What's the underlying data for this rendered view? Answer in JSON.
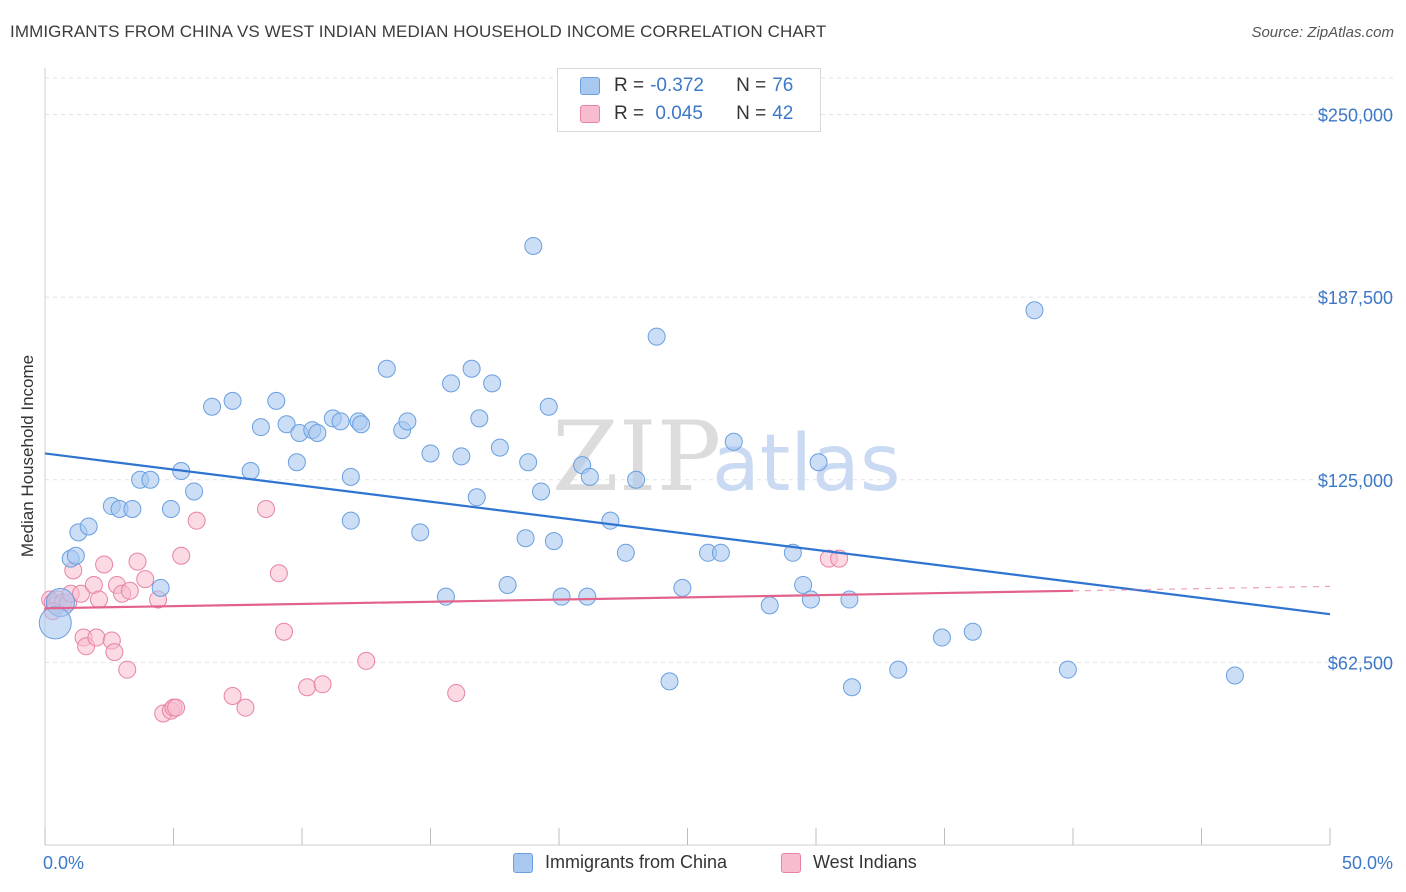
{
  "title": "IMMIGRANTS FROM CHINA VS WEST INDIAN MEDIAN HOUSEHOLD INCOME CORRELATION CHART",
  "source": "Source: ZipAtlas.com",
  "watermark": {
    "part1": "ZIP",
    "part2": "atlas"
  },
  "legend": {
    "rows": [
      {
        "r_label": "R = ",
        "r_value": "-0.372",
        "n_label": "N = ",
        "n_value": "76",
        "color": "#a9c8f0",
        "border": "#6a9fe0"
      },
      {
        "r_label": "R = ",
        "r_value": " 0.045",
        "n_label": "N = ",
        "n_value": "42",
        "color": "#f7bccd",
        "border": "#e883a3"
      }
    ]
  },
  "bottom_legend": {
    "china": "Immigrants from China",
    "west_indians": "West Indians"
  },
  "chart_data": {
    "type": "scatter",
    "title": "IMMIGRANTS FROM CHINA VS WEST INDIAN MEDIAN HOUSEHOLD INCOME CORRELATION CHART",
    "xlabel": "",
    "ylabel": "Median Household Income",
    "xlim": [
      0,
      50
    ],
    "ylim": [
      0,
      262500
    ],
    "x_tick_labels": [
      "0.0%",
      "50.0%"
    ],
    "y_ticks": [
      62500,
      125000,
      187500,
      250000
    ],
    "y_tick_labels": [
      "$62,500",
      "$125,000",
      "$187,500",
      "$250,000"
    ],
    "grid": true,
    "series": [
      {
        "name": "Immigrants from China",
        "color": "#6a9fe0",
        "fill": "#a9c8f0",
        "trend": {
          "x": [
            0,
            50
          ],
          "y": [
            134000,
            79000
          ],
          "color": "#2f74d0"
        },
        "points": [
          [
            0.6,
            83000
          ],
          [
            1.0,
            98000
          ],
          [
            1.2,
            99000
          ],
          [
            1.3,
            107000
          ],
          [
            1.7,
            109000
          ],
          [
            2.6,
            116000
          ],
          [
            2.9,
            115000
          ],
          [
            3.4,
            115000
          ],
          [
            3.7,
            125000
          ],
          [
            4.1,
            125000
          ],
          [
            4.5,
            88000
          ],
          [
            4.9,
            115000
          ],
          [
            5.3,
            128000
          ],
          [
            5.8,
            121000
          ],
          [
            6.5,
            150000
          ],
          [
            7.3,
            152000
          ],
          [
            8.0,
            128000
          ],
          [
            8.4,
            143000
          ],
          [
            9.0,
            152000
          ],
          [
            9.4,
            144000
          ],
          [
            9.8,
            131000
          ],
          [
            9.9,
            141000
          ],
          [
            10.4,
            142000
          ],
          [
            10.6,
            141000
          ],
          [
            11.2,
            146000
          ],
          [
            11.5,
            145000
          ],
          [
            12.2,
            145000
          ],
          [
            11.9,
            111000
          ],
          [
            11.9,
            126000
          ],
          [
            12.3,
            144000
          ],
          [
            13.3,
            163000
          ],
          [
            13.9,
            142000
          ],
          [
            14.1,
            145000
          ],
          [
            14.6,
            107000
          ],
          [
            15.0,
            134000
          ],
          [
            15.6,
            85000
          ],
          [
            15.8,
            158000
          ],
          [
            16.2,
            133000
          ],
          [
            16.6,
            163000
          ],
          [
            16.8,
            119000
          ],
          [
            16.9,
            146000
          ],
          [
            17.4,
            158000
          ],
          [
            17.7,
            136000
          ],
          [
            18.0,
            89000
          ],
          [
            18.7,
            105000
          ],
          [
            18.8,
            131000
          ],
          [
            19.0,
            205000
          ],
          [
            19.3,
            121000
          ],
          [
            19.6,
            150000
          ],
          [
            19.8,
            104000
          ],
          [
            20.1,
            85000
          ],
          [
            20.9,
            130000
          ],
          [
            21.1,
            85000
          ],
          [
            21.2,
            126000
          ],
          [
            22.0,
            111000
          ],
          [
            22.6,
            100000
          ],
          [
            23.0,
            125000
          ],
          [
            23.8,
            174000
          ],
          [
            24.3,
            56000
          ],
          [
            24.8,
            88000
          ],
          [
            25.8,
            100000
          ],
          [
            26.3,
            100000
          ],
          [
            26.8,
            138000
          ],
          [
            28.2,
            82000
          ],
          [
            29.1,
            100000
          ],
          [
            29.5,
            89000
          ],
          [
            29.8,
            84000
          ],
          [
            30.1,
            131000
          ],
          [
            31.3,
            84000
          ],
          [
            31.4,
            54000
          ],
          [
            33.2,
            60000
          ],
          [
            34.9,
            71000
          ],
          [
            36.1,
            73000
          ],
          [
            38.5,
            183000
          ],
          [
            39.8,
            60000
          ],
          [
            46.3,
            58000
          ]
        ]
      },
      {
        "name": "West Indians",
        "color": "#e883a3",
        "fill": "#f7bccd",
        "trend": {
          "x": [
            0,
            40
          ],
          "y": [
            81000,
            87000
          ],
          "color": "#e2628c",
          "dashed_to": [
            50,
            88500
          ]
        },
        "points": [
          [
            0.2,
            84000
          ],
          [
            0.3,
            83000
          ],
          [
            0.4,
            82000
          ],
          [
            0.5,
            84000
          ],
          [
            0.7,
            83000
          ],
          [
            0.9,
            83000
          ],
          [
            1.0,
            86000
          ],
          [
            1.1,
            94000
          ],
          [
            1.4,
            86000
          ],
          [
            1.5,
            71000
          ],
          [
            1.6,
            68000
          ],
          [
            1.9,
            89000
          ],
          [
            2.0,
            71000
          ],
          [
            2.1,
            84000
          ],
          [
            2.3,
            96000
          ],
          [
            2.6,
            70000
          ],
          [
            2.7,
            66000
          ],
          [
            2.8,
            89000
          ],
          [
            3.0,
            86000
          ],
          [
            3.2,
            60000
          ],
          [
            3.3,
            87000
          ],
          [
            3.6,
            97000
          ],
          [
            3.9,
            91000
          ],
          [
            4.4,
            84000
          ],
          [
            4.6,
            45000
          ],
          [
            4.9,
            46000
          ],
          [
            5.0,
            47000
          ],
          [
            5.1,
            47000
          ],
          [
            5.3,
            99000
          ],
          [
            5.9,
            111000
          ],
          [
            7.3,
            51000
          ],
          [
            7.8,
            47000
          ],
          [
            8.6,
            115000
          ],
          [
            9.1,
            93000
          ],
          [
            9.3,
            73000
          ],
          [
            10.2,
            54000
          ],
          [
            10.8,
            55000
          ],
          [
            12.5,
            63000
          ],
          [
            16.0,
            52000
          ],
          [
            30.5,
            98000
          ],
          [
            30.9,
            98000
          ],
          [
            0.3,
            80000
          ]
        ]
      }
    ]
  }
}
